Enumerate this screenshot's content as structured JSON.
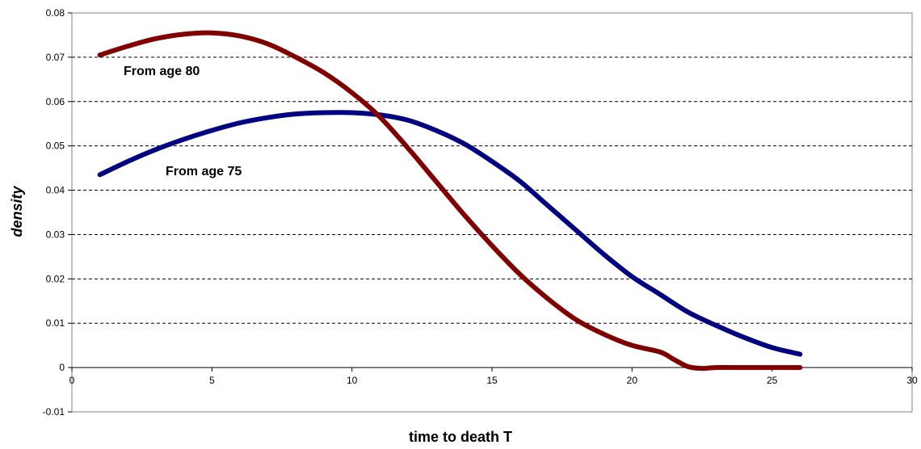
{
  "chart_data": {
    "type": "line",
    "title": "",
    "xlabel": "time to death T",
    "ylabel": "density",
    "xlim": [
      0,
      30
    ],
    "ylim": [
      -0.01,
      0.08
    ],
    "x_ticks": [
      "0",
      "5",
      "10",
      "15",
      "20",
      "25",
      "30"
    ],
    "y_ticks": [
      "-0.01",
      "0",
      "0.01",
      "0.02",
      "0.03",
      "0.04",
      "0.05",
      "0.06",
      "0.07",
      "0.08"
    ],
    "grid": "horizontal dashed",
    "series": [
      {
        "name": "From age 75",
        "color": "#000080",
        "points": [
          [
            1,
            0.0435
          ],
          [
            2,
            0.0465
          ],
          [
            3,
            0.0492
          ],
          [
            4,
            0.0515
          ],
          [
            5,
            0.0535
          ],
          [
            6,
            0.0552
          ],
          [
            7,
            0.0564
          ],
          [
            8,
            0.0572
          ],
          [
            9,
            0.0575
          ],
          [
            10,
            0.0575
          ],
          [
            11,
            0.057
          ],
          [
            12,
            0.0558
          ],
          [
            13,
            0.0535
          ],
          [
            14,
            0.0505
          ],
          [
            15,
            0.0465
          ],
          [
            16,
            0.042
          ],
          [
            17,
            0.0365
          ],
          [
            18,
            0.031
          ],
          [
            19,
            0.0255
          ],
          [
            20,
            0.0205
          ],
          [
            21,
            0.0165
          ],
          [
            22,
            0.0125
          ],
          [
            23,
            0.0095
          ],
          [
            24,
            0.0068
          ],
          [
            25,
            0.0045
          ],
          [
            26,
            0.003
          ]
        ]
      },
      {
        "name": "From age 80",
        "color": "#800000",
        "points": [
          [
            1,
            0.0705
          ],
          [
            2,
            0.0725
          ],
          [
            3,
            0.0742
          ],
          [
            4,
            0.0752
          ],
          [
            5,
            0.0755
          ],
          [
            6,
            0.0748
          ],
          [
            7,
            0.073
          ],
          [
            8,
            0.07
          ],
          [
            9,
            0.0665
          ],
          [
            10,
            0.062
          ],
          [
            11,
            0.0565
          ],
          [
            12,
            0.0495
          ],
          [
            13,
            0.042
          ],
          [
            14,
            0.0345
          ],
          [
            15,
            0.0275
          ],
          [
            16,
            0.021
          ],
          [
            17,
            0.0155
          ],
          [
            18,
            0.0108
          ],
          [
            19,
            0.0075
          ],
          [
            20,
            0.005
          ],
          [
            21,
            0.0035
          ],
          [
            21.5,
            0.0018
          ],
          [
            22,
            0.0002
          ],
          [
            22.5,
            -0.0002
          ],
          [
            23,
            0.0
          ],
          [
            24,
            0.0
          ],
          [
            25,
            0.0
          ],
          [
            26,
            0.0
          ]
        ]
      }
    ]
  }
}
